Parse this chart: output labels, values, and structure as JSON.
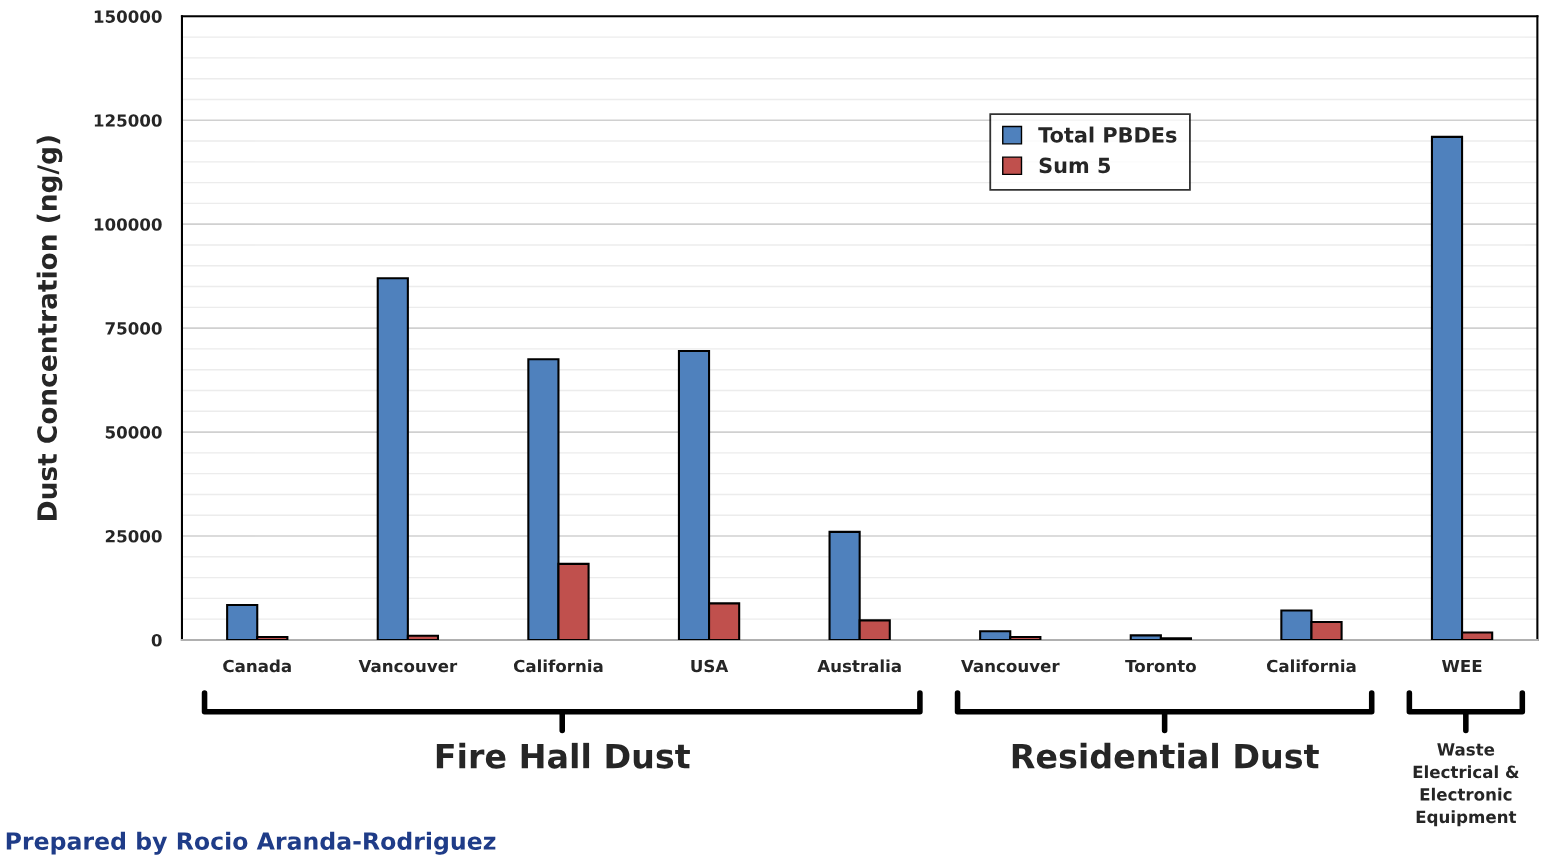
{
  "chart_data": {
    "type": "bar",
    "ylabel": "Dust Concentration (ng/g)",
    "categories": [
      "Canada",
      "Vancouver",
      "California",
      "USA",
      "Australia",
      "Vancouver",
      "Toronto",
      "California",
      "WEE"
    ],
    "series": [
      {
        "name": "Total PBDEs",
        "color": "#4f81bd",
        "values": [
          8400,
          87000,
          67500,
          69500,
          26000,
          2100,
          1100,
          7100,
          121000
        ]
      },
      {
        "name": "Sum 5",
        "color": "#c0504d",
        "values": [
          700,
          1000,
          18300,
          8800,
          4700,
          700,
          400,
          4300,
          1800
        ]
      }
    ],
    "ylim": [
      0,
      150000
    ],
    "yticks": [
      0,
      25000,
      50000,
      75000,
      100000,
      125000,
      150000
    ],
    "grid": "y",
    "legend": "top",
    "annotations": [
      "Fire Hall Dust",
      "Residential Dust",
      "Waste\nElectrical &\nElectronic\nEquipment",
      "Prepared by Rocio Aranda-Rodriguez"
    ]
  }
}
